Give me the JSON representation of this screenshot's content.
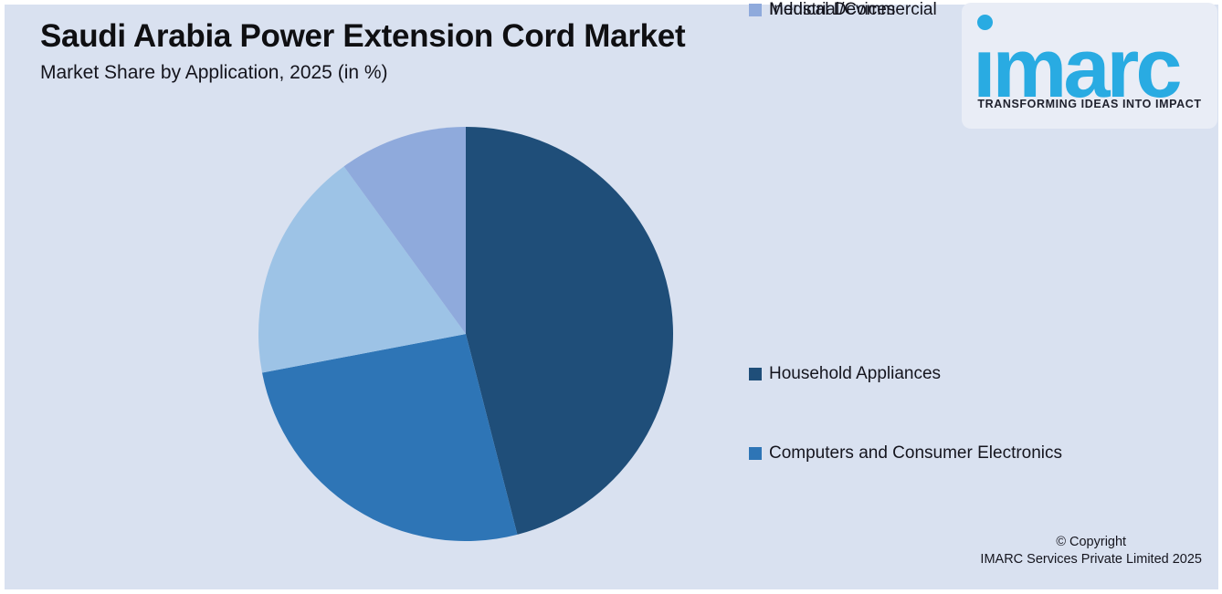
{
  "header": {
    "title": "Saudi Arabia Power Extension Cord Market",
    "subtitle": "Market Share by Application, 2025 (in %)"
  },
  "logo": {
    "name": "imarc",
    "tagline": "TRANSFORMING IDEAS INTO IMPACT",
    "brand_color": "#29ABE2"
  },
  "chart_data": {
    "type": "pie",
    "title": "Saudi Arabia Power Extension Cord Market",
    "subtitle": "Market Share by Application, 2025 (in %)",
    "unit": "%",
    "start_angle_deg": 0,
    "direction": "clockwise",
    "legend_position": "right",
    "data_labels": false,
    "series": [
      {
        "name": "Household Appliances",
        "value": 46,
        "color": "#1F4E79"
      },
      {
        "name": "Computers and Consumer Electronics",
        "value": 26,
        "color": "#2E75B6"
      },
      {
        "name": "Medical Devices",
        "value": 18,
        "color": "#9DC3E6"
      },
      {
        "name": "Industrial/Commercial",
        "value": 10,
        "color": "#8FAADC"
      }
    ]
  },
  "footer": {
    "copyright_line1": "© Copyright",
    "copyright_line2": "IMARC Services Private Limited 2025"
  },
  "colors": {
    "panel_background": "#D9E1F0",
    "frame": "#FFFFFF",
    "logo_panel": "#E9EDF6",
    "text": "#15151E"
  }
}
